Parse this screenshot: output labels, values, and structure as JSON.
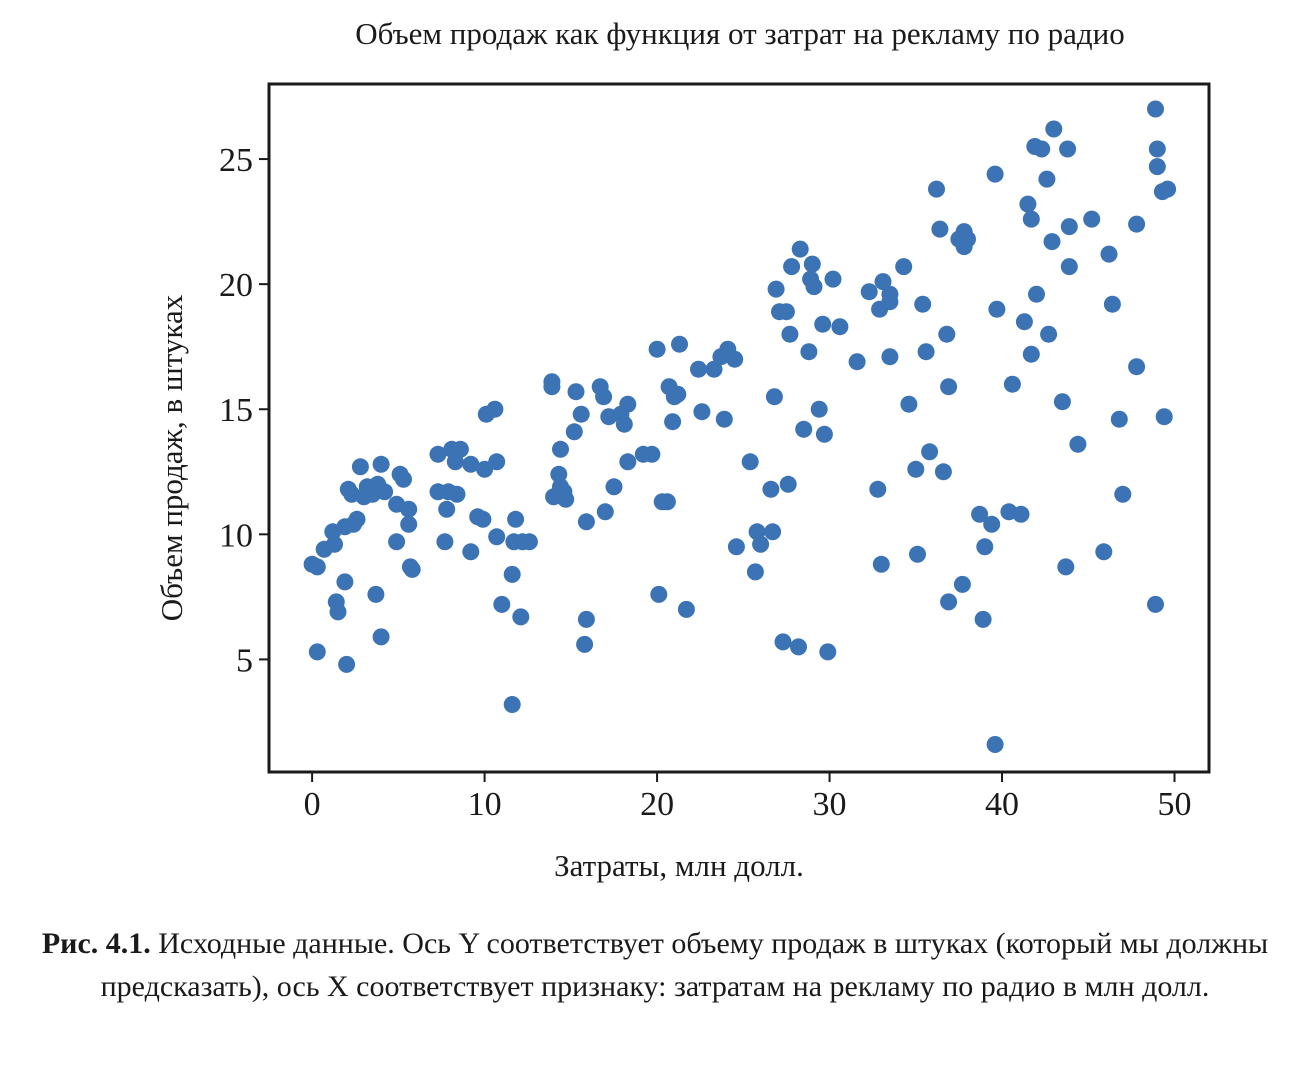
{
  "chart_data": {
    "type": "scatter",
    "title": "Объем продаж как функция от затрат на рекламу по радио",
    "xlabel": "Затраты, млн долл.",
    "ylabel": "Объем продаж, в штуках",
    "xlim": [
      -2.5,
      52
    ],
    "ylim": [
      0.5,
      28
    ],
    "xticks": [
      0,
      10,
      20,
      30,
      40,
      50
    ],
    "yticks": [
      5,
      10,
      15,
      20,
      25
    ],
    "grid": false,
    "legend": "none",
    "marker_color": "#3b73b4",
    "points": [
      [
        0.0,
        8.8
      ],
      [
        0.3,
        8.7
      ],
      [
        0.3,
        5.3
      ],
      [
        0.7,
        9.4
      ],
      [
        1.2,
        10.1
      ],
      [
        1.3,
        9.6
      ],
      [
        1.4,
        7.3
      ],
      [
        1.5,
        6.9
      ],
      [
        1.9,
        10.3
      ],
      [
        1.9,
        8.1
      ],
      [
        2.0,
        4.8
      ],
      [
        2.1,
        11.8
      ],
      [
        2.3,
        11.6
      ],
      [
        2.4,
        10.4
      ],
      [
        2.6,
        10.6
      ],
      [
        2.8,
        12.7
      ],
      [
        3.0,
        11.5
      ],
      [
        3.2,
        11.9
      ],
      [
        3.5,
        11.6
      ],
      [
        3.7,
        7.6
      ],
      [
        3.8,
        12.0
      ],
      [
        4.0,
        12.8
      ],
      [
        4.0,
        5.9
      ],
      [
        4.2,
        11.7
      ],
      [
        4.9,
        11.2
      ],
      [
        4.9,
        9.7
      ],
      [
        5.1,
        12.4
      ],
      [
        5.3,
        12.2
      ],
      [
        5.6,
        11.0
      ],
      [
        5.6,
        10.4
      ],
      [
        5.7,
        8.7
      ],
      [
        5.8,
        8.6
      ],
      [
        7.3,
        11.7
      ],
      [
        7.3,
        13.2
      ],
      [
        7.7,
        9.7
      ],
      [
        7.8,
        11.0
      ],
      [
        7.9,
        11.7
      ],
      [
        8.1,
        13.4
      ],
      [
        8.3,
        12.9
      ],
      [
        8.4,
        11.6
      ],
      [
        8.6,
        13.4
      ],
      [
        9.2,
        12.8
      ],
      [
        9.2,
        9.3
      ],
      [
        9.6,
        10.7
      ],
      [
        9.9,
        10.6
      ],
      [
        10.0,
        12.6
      ],
      [
        10.1,
        14.8
      ],
      [
        10.6,
        15.0
      ],
      [
        10.7,
        12.9
      ],
      [
        10.7,
        9.9
      ],
      [
        11.0,
        7.2
      ],
      [
        11.6,
        8.4
      ],
      [
        11.6,
        3.2
      ],
      [
        11.7,
        9.7
      ],
      [
        11.8,
        10.6
      ],
      [
        12.2,
        9.7
      ],
      [
        12.1,
        6.7
      ],
      [
        12.6,
        9.7
      ],
      [
        13.9,
        16.1
      ],
      [
        13.9,
        15.9
      ],
      [
        14.0,
        11.5
      ],
      [
        14.3,
        12.4
      ],
      [
        14.4,
        13.4
      ],
      [
        14.4,
        11.9
      ],
      [
        14.6,
        11.7
      ],
      [
        14.7,
        11.4
      ],
      [
        15.2,
        14.1
      ],
      [
        15.3,
        15.7
      ],
      [
        15.6,
        14.8
      ],
      [
        15.9,
        10.5
      ],
      [
        15.9,
        6.6
      ],
      [
        15.8,
        5.6
      ],
      [
        16.7,
        15.9
      ],
      [
        16.9,
        15.5
      ],
      [
        17.0,
        10.9
      ],
      [
        17.2,
        14.7
      ],
      [
        17.5,
        11.9
      ],
      [
        17.9,
        14.8
      ],
      [
        18.1,
        14.4
      ],
      [
        18.3,
        15.2
      ],
      [
        18.3,
        12.9
      ],
      [
        19.2,
        13.2
      ],
      [
        19.7,
        13.2
      ],
      [
        20.0,
        17.4
      ],
      [
        20.1,
        7.6
      ],
      [
        20.3,
        11.3
      ],
      [
        20.6,
        11.3
      ],
      [
        20.7,
        15.9
      ],
      [
        20.9,
        14.5
      ],
      [
        21.0,
        15.5
      ],
      [
        21.2,
        15.6
      ],
      [
        21.3,
        17.6
      ],
      [
        21.7,
        7.0
      ],
      [
        22.4,
        16.6
      ],
      [
        22.6,
        14.9
      ],
      [
        23.3,
        16.6
      ],
      [
        23.7,
        17.1
      ],
      [
        23.9,
        14.6
      ],
      [
        24.1,
        17.4
      ],
      [
        24.5,
        17.0
      ],
      [
        24.6,
        9.5
      ],
      [
        25.4,
        12.9
      ],
      [
        25.7,
        8.5
      ],
      [
        25.8,
        10.1
      ],
      [
        26.0,
        9.6
      ],
      [
        26.6,
        11.8
      ],
      [
        26.7,
        10.1
      ],
      [
        26.8,
        15.5
      ],
      [
        26.9,
        19.8
      ],
      [
        27.1,
        18.9
      ],
      [
        27.3,
        5.7
      ],
      [
        27.5,
        18.9
      ],
      [
        27.6,
        12.0
      ],
      [
        27.7,
        18.0
      ],
      [
        27.8,
        20.7
      ],
      [
        28.2,
        5.5
      ],
      [
        28.3,
        21.4
      ],
      [
        28.5,
        14.2
      ],
      [
        28.8,
        17.3
      ],
      [
        28.9,
        20.2
      ],
      [
        29.0,
        20.8
      ],
      [
        29.1,
        19.9
      ],
      [
        29.4,
        15.0
      ],
      [
        29.6,
        18.4
      ],
      [
        29.7,
        14.0
      ],
      [
        29.9,
        5.3
      ],
      [
        30.2,
        20.2
      ],
      [
        30.6,
        18.3
      ],
      [
        31.6,
        16.9
      ],
      [
        32.3,
        19.7
      ],
      [
        32.8,
        11.8
      ],
      [
        32.9,
        19.0
      ],
      [
        33.0,
        8.8
      ],
      [
        33.1,
        20.1
      ],
      [
        33.5,
        19.3
      ],
      [
        33.5,
        17.1
      ],
      [
        33.5,
        19.6
      ],
      [
        34.3,
        20.7
      ],
      [
        34.6,
        15.2
      ],
      [
        35.0,
        12.6
      ],
      [
        35.1,
        9.2
      ],
      [
        35.4,
        19.2
      ],
      [
        35.6,
        17.3
      ],
      [
        35.8,
        13.3
      ],
      [
        36.2,
        23.8
      ],
      [
        36.4,
        22.2
      ],
      [
        36.6,
        12.5
      ],
      [
        36.8,
        18.0
      ],
      [
        36.9,
        15.9
      ],
      [
        36.9,
        7.3
      ],
      [
        37.5,
        21.8
      ],
      [
        37.7,
        8.0
      ],
      [
        37.8,
        21.5
      ],
      [
        37.8,
        22.1
      ],
      [
        38.0,
        21.8
      ],
      [
        38.7,
        10.8
      ],
      [
        39.0,
        9.5
      ],
      [
        38.9,
        6.6
      ],
      [
        39.4,
        10.4
      ],
      [
        39.6,
        24.4
      ],
      [
        39.7,
        19.0
      ],
      [
        39.6,
        1.6
      ],
      [
        40.4,
        10.9
      ],
      [
        40.6,
        16.0
      ],
      [
        41.1,
        10.8
      ],
      [
        41.3,
        18.5
      ],
      [
        41.5,
        23.2
      ],
      [
        41.7,
        22.6
      ],
      [
        41.7,
        17.2
      ],
      [
        42.0,
        19.6
      ],
      [
        41.9,
        25.5
      ],
      [
        42.3,
        25.4
      ],
      [
        42.6,
        24.2
      ],
      [
        42.7,
        18.0
      ],
      [
        42.9,
        21.7
      ],
      [
        43.0,
        26.2
      ],
      [
        43.5,
        15.3
      ],
      [
        43.7,
        8.7
      ],
      [
        43.8,
        25.4
      ],
      [
        43.9,
        22.3
      ],
      [
        43.9,
        20.7
      ],
      [
        44.4,
        13.6
      ],
      [
        45.2,
        22.6
      ],
      [
        45.9,
        9.3
      ],
      [
        46.2,
        21.2
      ],
      [
        46.4,
        19.2
      ],
      [
        46.8,
        14.6
      ],
      [
        47.0,
        11.6
      ],
      [
        47.8,
        22.4
      ],
      [
        47.8,
        16.7
      ],
      [
        48.9,
        27.0
      ],
      [
        48.9,
        7.2
      ],
      [
        49.0,
        25.4
      ],
      [
        49.0,
        24.7
      ],
      [
        49.3,
        23.7
      ],
      [
        49.4,
        14.7
      ],
      [
        49.6,
        23.8
      ]
    ]
  },
  "caption": {
    "label": "Рис. 4.1.",
    "text": " Исходные данные. Ось Y соответствует объему продаж в штуках (который мы должны предсказать), ось X соответствует признаку: затратам на рекламу по радио в млн долл."
  }
}
